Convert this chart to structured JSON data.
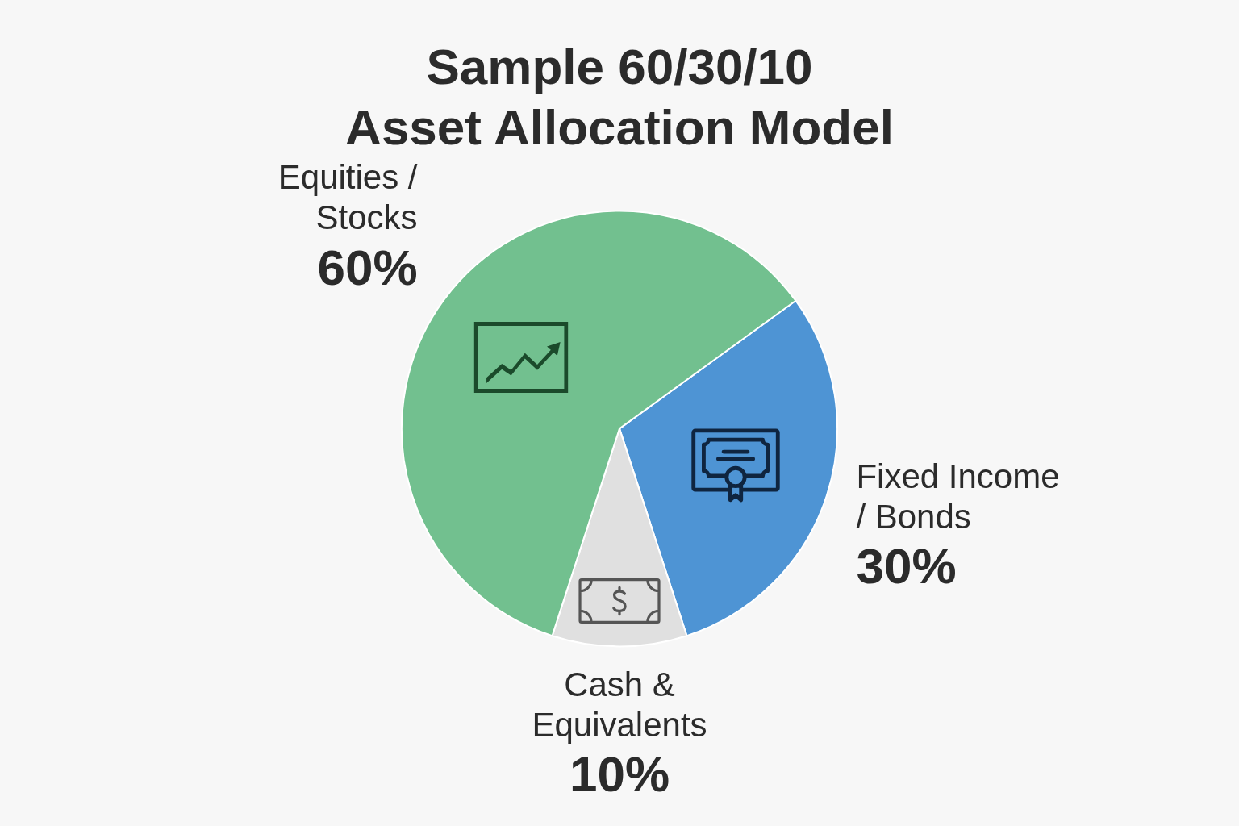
{
  "chart_data": {
    "type": "pie",
    "title": "Sample 60/30/10 Asset Allocation Model",
    "categories": [
      "Fixed Income / Bonds",
      "Cash & Equivalents",
      "Equities / Stocks"
    ],
    "values": [
      30,
      10,
      60
    ],
    "colors": [
      "#4e94d4",
      "#e0e0e0",
      "#72c08f"
    ],
    "value_labels": [
      "30%",
      "10%",
      "60%"
    ]
  }
}
